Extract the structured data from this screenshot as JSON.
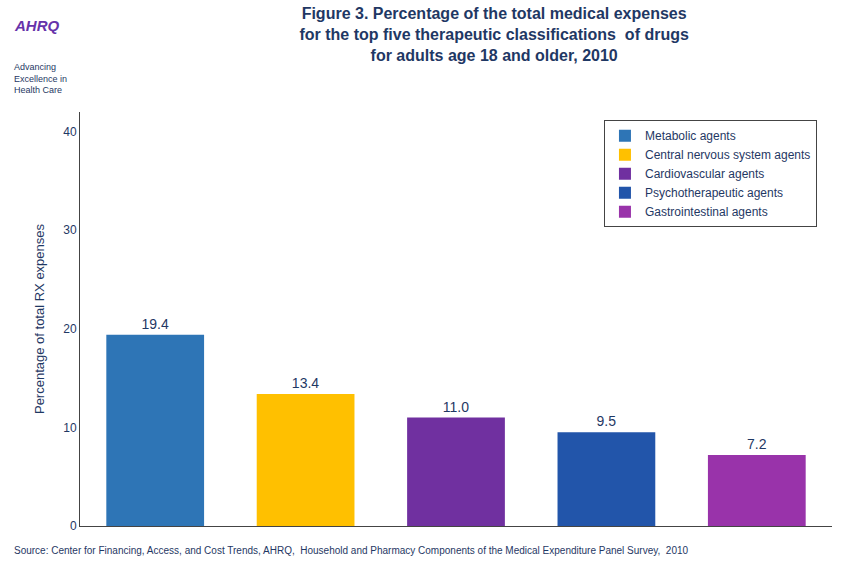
{
  "chart_data": {
    "type": "bar",
    "title": "Figure 3. Percentage of the total medical expenses\nfor the top five therapeutic classifications  of drugs\nfor adults age 18 and older, 2010",
    "ylabel": "Percentage of total RX expenses",
    "categories": [
      "Metabolic agents",
      "Central nervous system agents",
      "Cardiovascular agents",
      "Psychotherapeutic agents",
      "Gastrointestinal agents"
    ],
    "values": [
      19.4,
      13.4,
      11.0,
      9.5,
      7.2
    ],
    "value_labels": [
      "19.4",
      "13.4",
      "11.0",
      "9.5",
      "7.2"
    ],
    "colors": [
      "#2E75B6",
      "#FFC000",
      "#7030A0",
      "#2255AA",
      "#9933AA"
    ],
    "ylim": [
      0,
      42
    ],
    "yticks": [
      0,
      10,
      20,
      30,
      40
    ],
    "grid": false,
    "legend": "upper right",
    "data_labels": true,
    "tick_labels": "y",
    "annotations": [
      "Source: Center for Financing, Access, and Cost Trends, AHRQ,  Household and Pharmacy Components of the Medical Expenditure Panel Survey,  2010",
      "AHRQ",
      "Advancing\nExcellence in\nHealth Care"
    ]
  }
}
